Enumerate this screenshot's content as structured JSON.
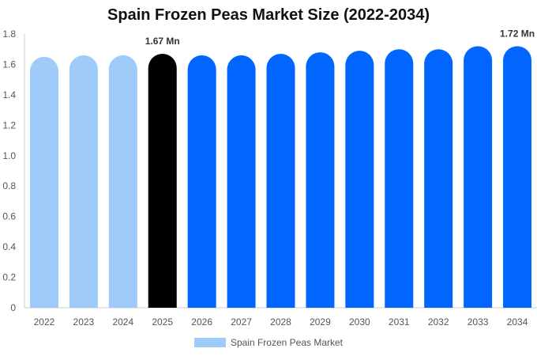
{
  "title": "Spain Frozen Peas Market Size (2022-2034)",
  "legend": {
    "label": "Spain Frozen Peas Market",
    "color": "#9ecbfa"
  },
  "colors": {
    "historical": "#9ecbfa",
    "current": "#000000",
    "forecast": "#0066ff",
    "axis": "#cccccc",
    "tick_text": "#555555"
  },
  "chart_data": {
    "type": "bar",
    "title": "Spain Frozen Peas Market Size (2022-2034)",
    "categories": [
      "2022",
      "2023",
      "2024",
      "2025",
      "2026",
      "2027",
      "2028",
      "2029",
      "2030",
      "2031",
      "2032",
      "2033",
      "2034"
    ],
    "series": [
      {
        "name": "Spain Frozen Peas Market",
        "values": [
          1.65,
          1.66,
          1.66,
          1.67,
          1.66,
          1.66,
          1.67,
          1.68,
          1.69,
          1.7,
          1.7,
          1.72,
          1.72
        ]
      }
    ],
    "bar_roles": [
      "historical",
      "historical",
      "historical",
      "current",
      "forecast",
      "forecast",
      "forecast",
      "forecast",
      "forecast",
      "forecast",
      "forecast",
      "forecast",
      "forecast"
    ],
    "data_labels": [
      {
        "index": 3,
        "text": "1.67 Mn"
      },
      {
        "index": 12,
        "text": "1.72 Mn"
      }
    ],
    "y_ticks": [
      "0",
      "0.2",
      "0.4",
      "0.6",
      "0.8",
      "1.0",
      "1.2",
      "1.4",
      "1.6",
      "1.8"
    ],
    "ylim": [
      0,
      1.8
    ],
    "xlabel": "",
    "ylabel": "",
    "grid": false,
    "legend_position": "bottom"
  }
}
